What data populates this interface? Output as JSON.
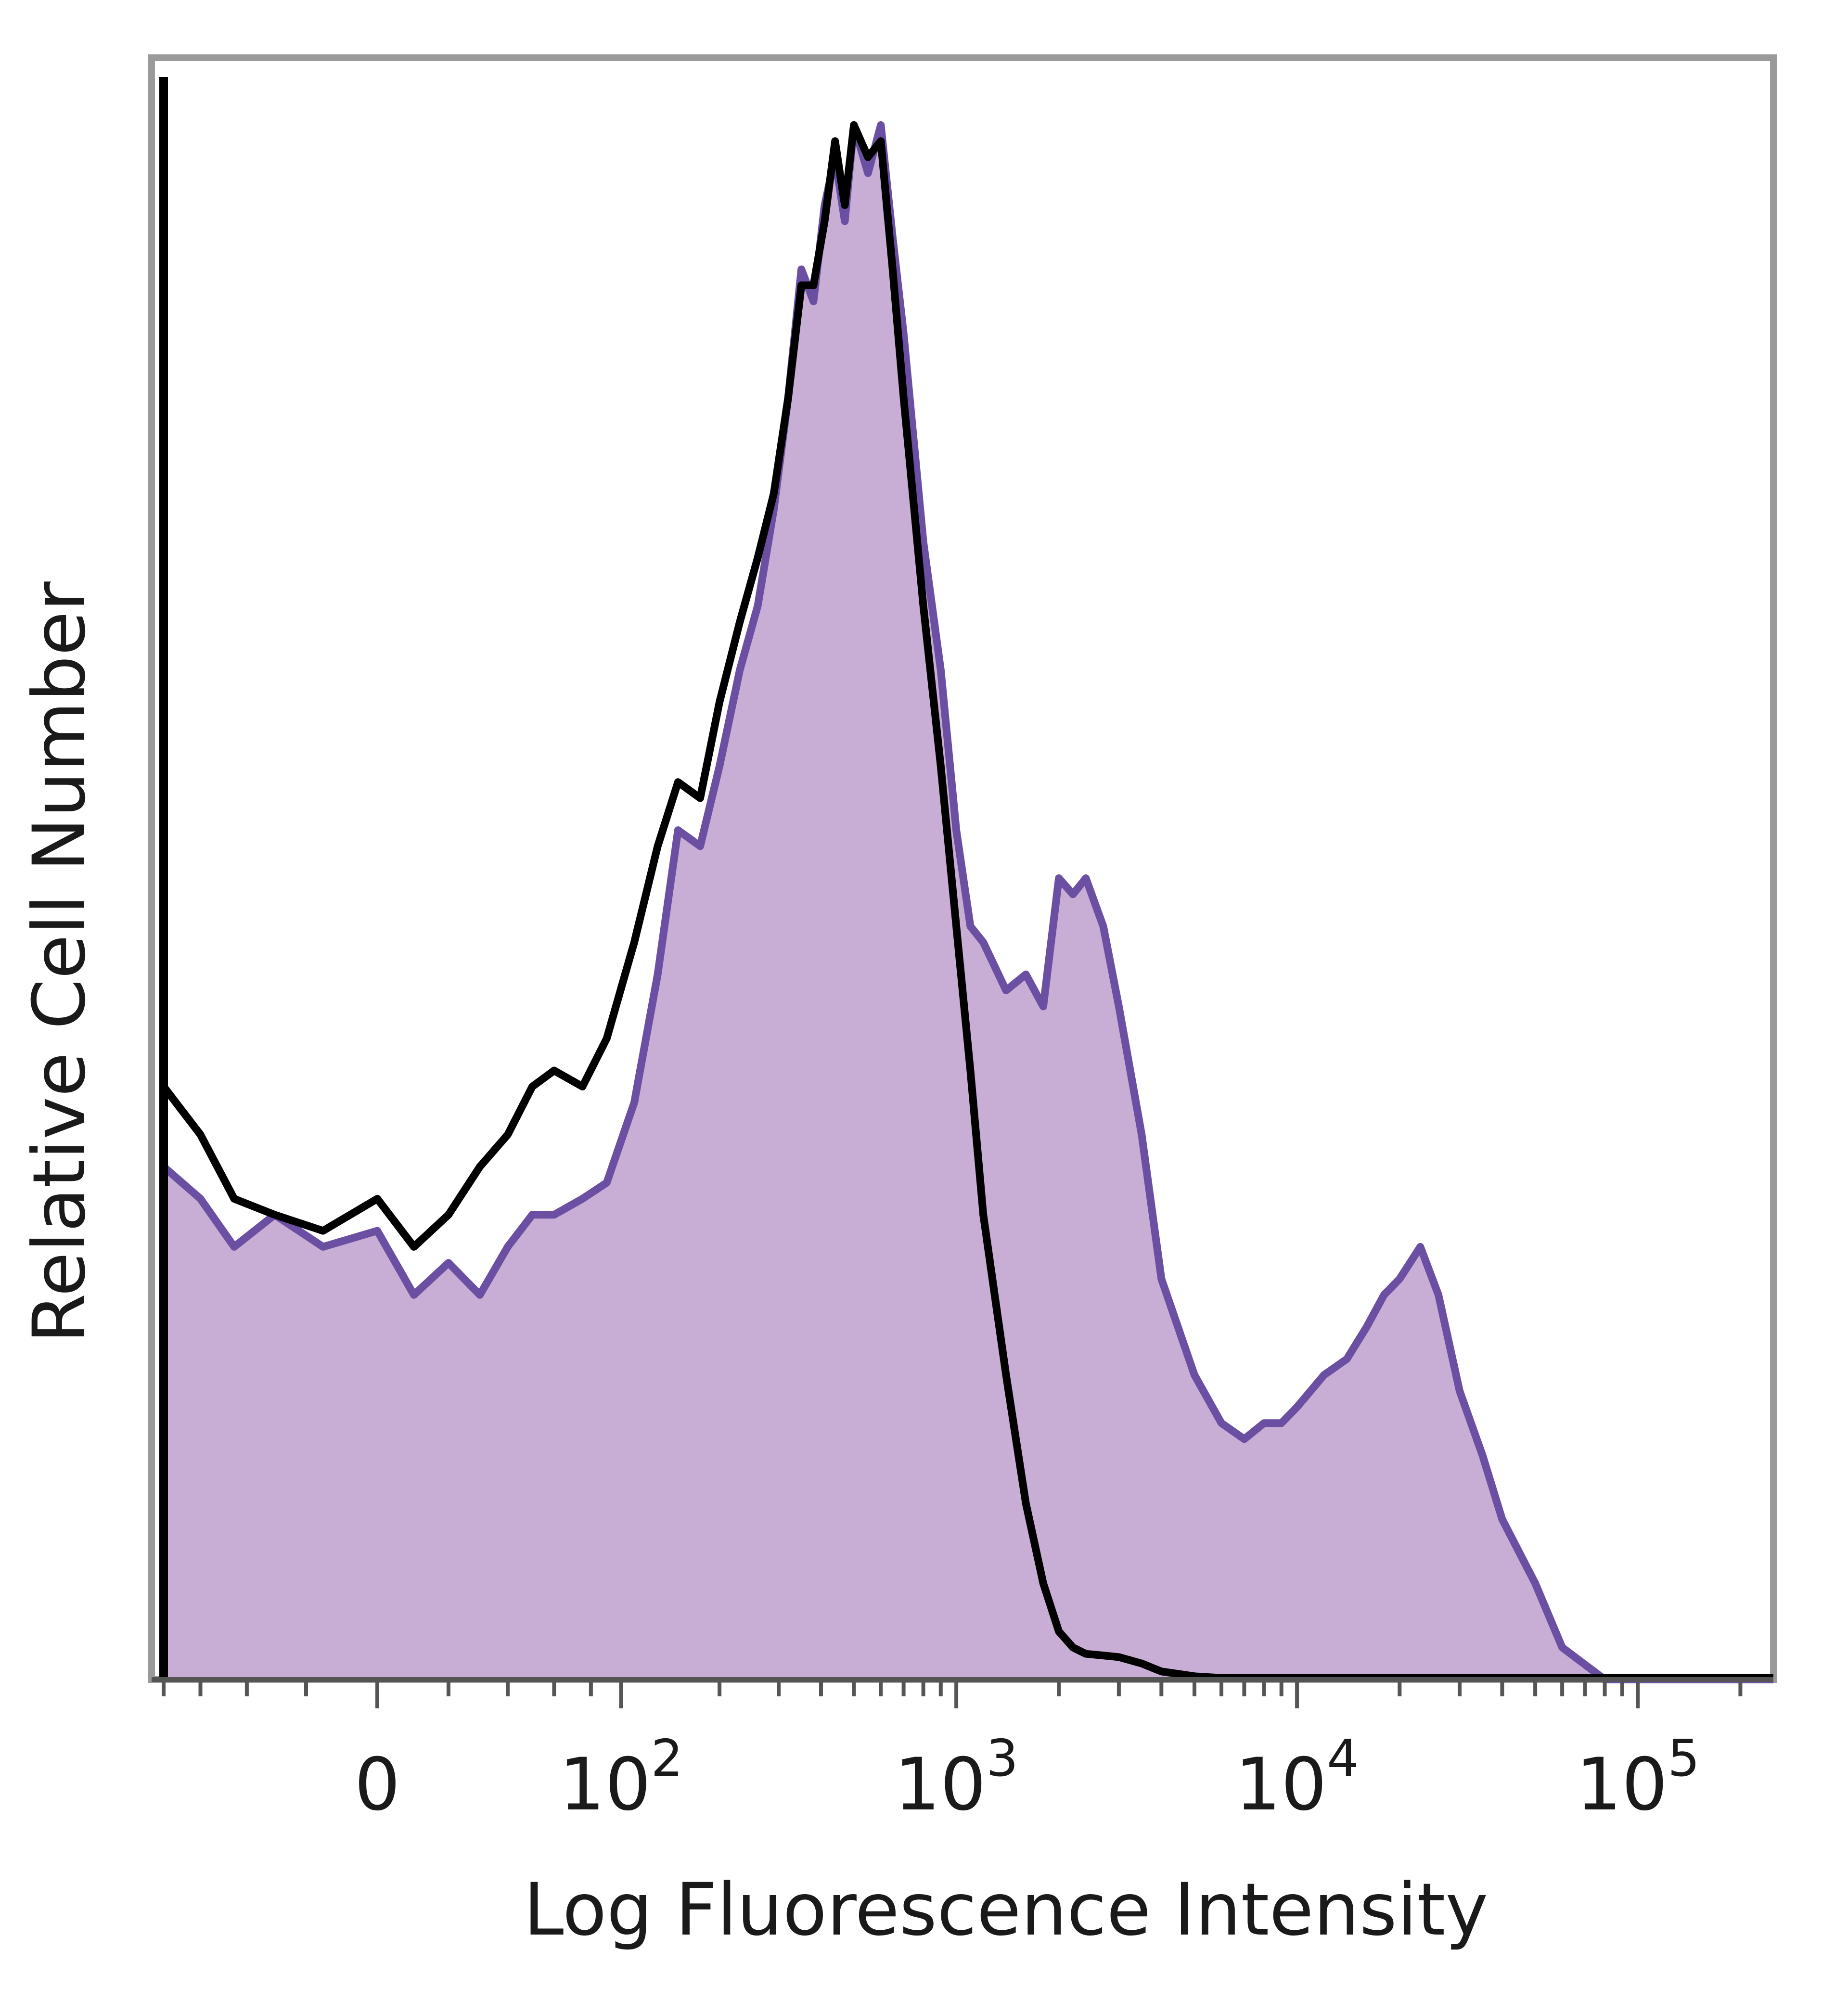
{
  "chart_data": {
    "type": "area",
    "xlabel": "Log Fluorescence Intensity",
    "ylabel": "Relative Cell Number",
    "x_scale": "biexponential",
    "xlim": [
      -80,
      250000
    ],
    "ylim": [
      0,
      100
    ],
    "grid": false,
    "legend": "none",
    "x_ticks": [
      {
        "value": 0,
        "base": "0",
        "exp": ""
      },
      {
        "value": 100,
        "base": "10",
        "exp": "2"
      },
      {
        "value": 1000,
        "base": "10",
        "exp": "3"
      },
      {
        "value": 10000,
        "base": "10",
        "exp": "4"
      },
      {
        "value": 100000,
        "base": "10",
        "exp": "5"
      }
    ],
    "series": [
      {
        "style": "filled",
        "color": "#c8aed4",
        "line_color": "#6a4fa3",
        "x": [
          -80,
          -60,
          -45,
          -30,
          -15,
          0,
          10,
          20,
          30,
          40,
          50,
          60,
          75,
          90,
          110,
          130,
          150,
          175,
          200,
          230,
          260,
          290,
          320,
          350,
          380,
          410,
          440,
          470,
          500,
          550,
          600,
          650,
          700,
          800,
          900,
          1000,
          1100,
          1200,
          1400,
          1600,
          1800,
          2000,
          2200,
          2400,
          2700,
          3000,
          3500,
          4000,
          5000,
          6000,
          7000,
          8000,
          9000,
          10000,
          12000,
          14000,
          16000,
          18000,
          20000,
          23000,
          26000,
          30000,
          35000,
          40000,
          50000,
          60000,
          80000,
          100000,
          150000,
          250000
        ],
        "y": [
          32,
          30,
          27,
          29,
          27,
          28,
          24,
          26,
          24,
          27,
          29,
          29,
          30,
          31,
          36,
          44,
          53,
          52,
          57,
          63,
          67,
          73,
          80,
          88,
          86,
          92,
          95,
          91,
          97,
          94,
          97,
          90,
          84,
          71,
          63,
          53,
          47,
          46,
          43,
          44,
          42,
          50,
          49,
          50,
          47,
          42,
          34,
          25,
          19,
          16,
          15,
          16,
          16,
          17,
          19,
          20,
          22,
          24,
          25,
          27,
          24,
          18,
          14,
          10,
          6,
          2,
          0,
          0,
          0,
          0
        ]
      },
      {
        "style": "line",
        "color": "#000000",
        "x": [
          -80,
          -60,
          -45,
          -30,
          -15,
          0,
          10,
          20,
          30,
          40,
          50,
          60,
          75,
          90,
          110,
          130,
          150,
          175,
          200,
          230,
          260,
          290,
          320,
          350,
          380,
          410,
          440,
          470,
          500,
          550,
          600,
          650,
          700,
          800,
          900,
          1000,
          1100,
          1200,
          1400,
          1600,
          1800,
          2000,
          2200,
          2400,
          2700,
          3000,
          3500,
          4000,
          5000,
          6000,
          7000,
          8000,
          9000,
          10000,
          12000,
          14000,
          16000,
          18000,
          20000,
          23000,
          26000,
          30000,
          35000,
          40000,
          50000,
          60000,
          80000,
          100000,
          150000,
          250000
        ],
        "y": [
          37,
          34,
          30,
          29,
          28,
          30,
          27,
          29,
          32,
          34,
          37,
          38,
          37,
          40,
          46,
          52,
          56,
          55,
          61,
          66,
          70,
          74,
          80,
          87,
          87,
          91,
          96,
          92,
          97,
          95,
          96,
          88,
          80,
          67,
          57,
          47,
          38,
          29,
          19,
          11,
          6,
          3,
          2,
          1.6,
          1.5,
          1.4,
          1,
          0.5,
          0.2,
          0.1,
          0.1,
          0.1,
          0.1,
          0.1,
          0.1,
          0.1,
          0.1,
          0.1,
          0.1,
          0.1,
          0.1,
          0.1,
          0.1,
          0.1,
          0.1,
          0.1,
          0.1,
          0.1,
          0.1,
          0.1
        ]
      }
    ]
  }
}
